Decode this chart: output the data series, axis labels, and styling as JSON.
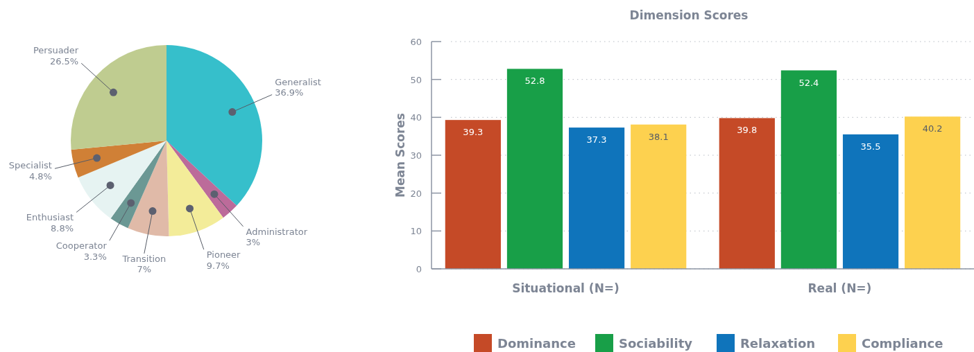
{
  "chart_data": [
    {
      "type": "pie",
      "categories": [
        "Generalist",
        "Administrator",
        "Pioneer",
        "Transition",
        "Cooperator",
        "Enthusiast",
        "Specialist",
        "Persuader"
      ],
      "values": [
        36.9,
        3,
        9.7,
        7,
        3.3,
        8.8,
        4.8,
        26.5
      ],
      "colors": [
        "#36bfcb",
        "#bc6b9a",
        "#f3ec99",
        "#e0baa8",
        "#6b9894",
        "#e6f3f2",
        "#d08036",
        "#bfcc90"
      ],
      "value_labels": [
        "36.9%",
        "3%",
        "9.7%",
        "7%",
        "3.3%",
        "8.8%",
        "4.8%",
        "26.5%"
      ]
    },
    {
      "type": "bar",
      "title": "Dimension Scores",
      "ylabel": "Mean Scores",
      "categories": [
        "Situational (N=)",
        "Real (N=)"
      ],
      "series": [
        {
          "name": "Dominance",
          "color": "#c54a27",
          "values": [
            39.3,
            39.8
          ]
        },
        {
          "name": "Sociability",
          "color": "#189f48",
          "values": [
            52.8,
            52.4
          ]
        },
        {
          "name": "Relaxation",
          "color": "#0f74bb",
          "values": [
            37.3,
            35.5
          ]
        },
        {
          "name": "Compliance",
          "color": "#fdd14f",
          "values": [
            38.1,
            40.2
          ]
        }
      ],
      "ylim": [
        0,
        60
      ],
      "yticks": [
        0,
        10,
        20,
        30,
        40,
        50,
        60
      ],
      "grid": "y",
      "data_labels": true,
      "legend": "bottom"
    }
  ]
}
